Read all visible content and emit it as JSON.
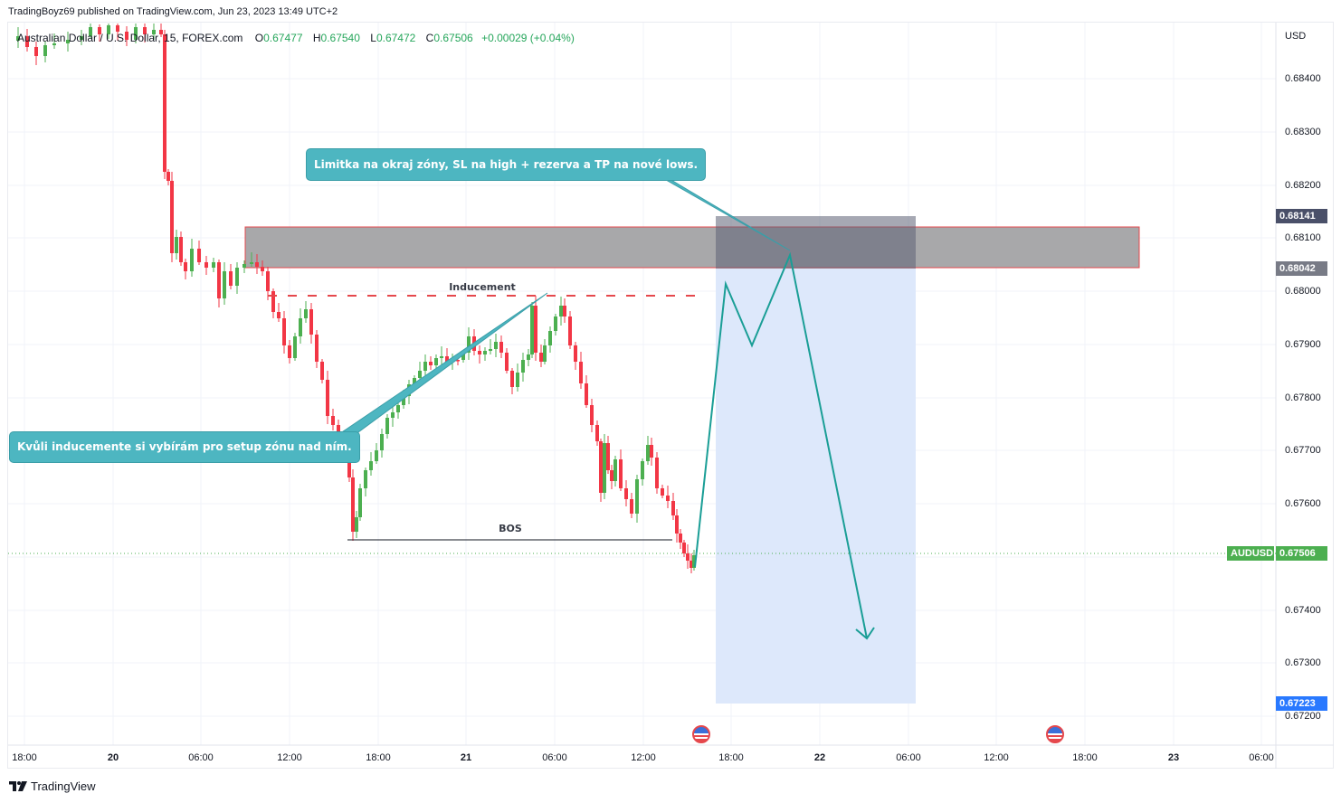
{
  "header": {
    "published": "TradingBoyz69 published on TradingView.com, Jun 23, 2023 13:49 UTC+2"
  },
  "legend": {
    "symbol": "Australian Dollar / U.S. Dollar, 15, FOREX.com",
    "open_label": "O",
    "open": "0.67477",
    "high_label": "H",
    "high": "0.67540",
    "low_label": "L",
    "low": "0.67472",
    "close_label": "C",
    "close": "0.67506",
    "change": "+0.00029 (+0.04%)"
  },
  "price_axis": {
    "currency": "USD",
    "ticks": [
      "0.68400",
      "0.68300",
      "0.68200",
      "0.68100",
      "0.68000",
      "0.67900",
      "0.67800",
      "0.67700",
      "0.67600",
      "0.67400",
      "0.67300",
      "0.67200"
    ],
    "labels": {
      "stop_price": "0.68141",
      "zone_price": "0.68042",
      "symbol": "AUDUSD",
      "last_price": "0.67506",
      "target_price": "0.67223"
    }
  },
  "time_axis": {
    "ticks": [
      {
        "label": "18:00",
        "bold": false
      },
      {
        "label": "20",
        "bold": true
      },
      {
        "label": "06:00",
        "bold": false
      },
      {
        "label": "12:00",
        "bold": false
      },
      {
        "label": "18:00",
        "bold": false
      },
      {
        "label": "21",
        "bold": true
      },
      {
        "label": "06:00",
        "bold": false
      },
      {
        "label": "12:00",
        "bold": false
      },
      {
        "label": "18:00",
        "bold": false
      },
      {
        "label": "22",
        "bold": true
      },
      {
        "label": "06:00",
        "bold": false
      },
      {
        "label": "12:00",
        "bold": false
      },
      {
        "label": "18:00",
        "bold": false
      },
      {
        "label": "23",
        "bold": true
      },
      {
        "label": "06:00",
        "bold": false
      }
    ]
  },
  "annotations": {
    "callout_top": "Limitka na okraj zóny, SL na high + rezerva a TP na nové lows.",
    "callout_left": "Kvůli inducemente si vybírám pro setup zónu nad ním.",
    "inducement_label": "Inducement",
    "bos_label": "BOS"
  },
  "events": [
    "us-flag-icon",
    "us-flag-icon"
  ],
  "colors": {
    "up": "#4caf50",
    "down": "#f23645",
    "callout": "#4db6c1",
    "projection": "#1a9e96",
    "zone_fill": "#a8a8aa",
    "zone_border": "#e5484d",
    "short_target_fill": "#dbe7fb",
    "short_stop_fill": "#787b8a",
    "last_price": "#4caf50",
    "target_label": "#2979ff"
  },
  "footer": {
    "brand": "TradingView"
  },
  "chart_data": {
    "type": "candlestick",
    "title": "Australian Dollar / U.S. Dollar, 15, FOREX.com",
    "symbol": "AUDUSD",
    "timeframe": "15",
    "ohlc_last": {
      "open": 0.67477,
      "high": 0.6754,
      "low": 0.67472,
      "close": 0.67506,
      "change": 0.00029,
      "change_pct": 0.04
    },
    "ylim": [
      0.6716,
      0.685
    ],
    "y_ticks": [
      0.684,
      0.683,
      0.682,
      0.681,
      0.68,
      0.679,
      0.678,
      0.677,
      0.676,
      0.674,
      0.673,
      0.672
    ],
    "x_ticks": [
      "18:00",
      "20",
      "06:00",
      "12:00",
      "18:00",
      "21",
      "06:00",
      "12:00",
      "18:00",
      "22",
      "06:00",
      "12:00",
      "18:00",
      "23",
      "06:00"
    ],
    "zones": [
      {
        "name": "supply zone",
        "from": 0.68042,
        "to": 0.68121
      },
      {
        "name": "short position stop",
        "from": 0.68042,
        "to": 0.68141
      },
      {
        "name": "short position target",
        "from": 0.67223,
        "to": 0.68042
      }
    ],
    "levels": [
      {
        "name": "Inducement",
        "price": 0.6799,
        "style": "dashed"
      },
      {
        "name": "BOS",
        "price": 0.67525,
        "style": "solid"
      },
      {
        "name": "last price",
        "price": 0.67506,
        "style": "dotted"
      }
    ],
    "projection_path_prices": [
      0.67483,
      0.68013,
      0.67895,
      0.68067,
      0.67345
    ],
    "grid": true,
    "legend_position": "top-left"
  }
}
